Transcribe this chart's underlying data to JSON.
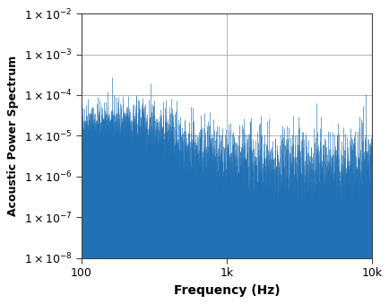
{
  "title": "",
  "xlabel": "Frequency (Hz)",
  "ylabel": "Acoustic Power Spectrum",
  "xmin": 100,
  "xmax": 10000,
  "ymin": 1e-08,
  "ymax": 0.01,
  "line_color": "#2171b5",
  "background_color": "#ffffff",
  "xtick_labels": [
    "100",
    "1k",
    "10k"
  ],
  "xtick_positions": [
    100,
    1000,
    10000
  ],
  "ytick_positions": [
    1e-08,
    1e-07,
    1e-06,
    1e-05,
    0.0001,
    0.001,
    0.01
  ],
  "seed": 42,
  "n_points": 2000
}
